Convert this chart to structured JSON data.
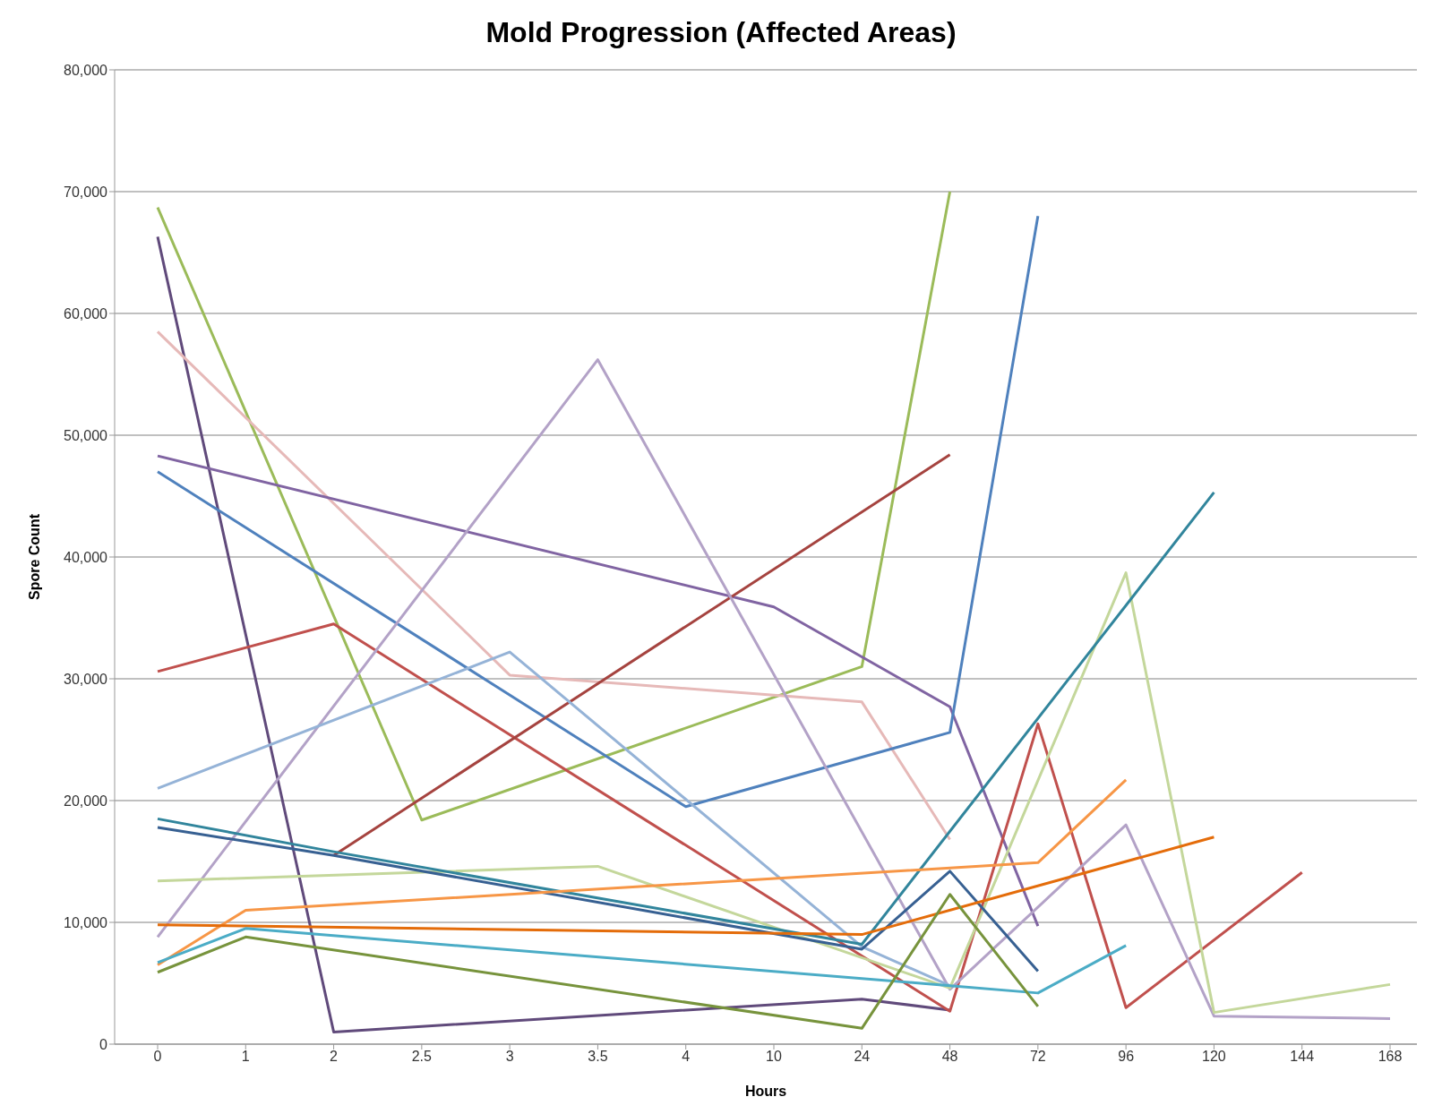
{
  "chart_data": {
    "type": "line",
    "title": "Mold Progression (Affected Areas)",
    "xlabel": "Hours",
    "ylabel": "Spore Count",
    "categories": [
      "0",
      "1",
      "2",
      "2.5",
      "3",
      "3.5",
      "4",
      "10",
      "24",
      "48",
      "72",
      "96",
      "120",
      "144",
      "168"
    ],
    "ylim": [
      0,
      80000
    ],
    "yticks": [
      0,
      {
        "value": 10000,
        "label": "10,000"
      },
      {
        "value": 20000,
        "label": "20,000"
      },
      {
        "value": 30000,
        "label": "30,000"
      },
      {
        "value": 40000,
        "label": "40,000"
      },
      {
        "value": 50000,
        "label": "50,000"
      },
      {
        "value": 60000,
        "label": "60,000"
      },
      {
        "value": 70000,
        "label": "70,000"
      },
      {
        "value": 80000,
        "label": "80,000"
      }
    ],
    "grid": "y",
    "marker": "none",
    "line_style": "solid",
    "series": [
      {
        "color": "#9bbb59",
        "values": [
          68700,
          null,
          null,
          18400,
          null,
          null,
          null,
          null,
          31000,
          70000,
          null,
          null,
          null,
          null,
          null
        ]
      },
      {
        "color": "#604a7b",
        "values": [
          66300,
          null,
          1000,
          null,
          null,
          null,
          null,
          null,
          3700,
          2800,
          null,
          null,
          null,
          null,
          null
        ]
      },
      {
        "color": "#e6b9b8",
        "values": [
          58500,
          null,
          null,
          null,
          30300,
          null,
          null,
          null,
          28100,
          16800,
          null,
          null,
          null,
          null,
          null
        ]
      },
      {
        "color": "#8064a2",
        "values": [
          48300,
          null,
          null,
          null,
          null,
          null,
          null,
          35900,
          null,
          27700,
          9700,
          null,
          null,
          null,
          null
        ]
      },
      {
        "color": "#4f81bd",
        "values": [
          47000,
          null,
          null,
          null,
          null,
          null,
          19500,
          null,
          null,
          25600,
          68000,
          null,
          null,
          null,
          null
        ]
      },
      {
        "color": "#c0504d",
        "values": [
          30600,
          null,
          34500,
          null,
          null,
          null,
          null,
          null,
          null,
          2700,
          26300,
          3000,
          null,
          14100,
          null
        ]
      },
      {
        "color": "#a5433f",
        "values": [
          null,
          null,
          15500,
          null,
          null,
          null,
          null,
          null,
          null,
          48400,
          null,
          null,
          null,
          null,
          null
        ]
      },
      {
        "color": "#b3a2c7",
        "values": [
          8800,
          null,
          null,
          null,
          null,
          56200,
          null,
          null,
          null,
          4500,
          null,
          18000,
          2300,
          null,
          2100
        ]
      },
      {
        "color": "#95b3d7",
        "values": [
          21000,
          null,
          null,
          null,
          32200,
          null,
          null,
          null,
          8000,
          4800,
          null,
          null,
          null,
          null,
          null
        ]
      },
      {
        "color": "#c4d79b",
        "values": [
          13400,
          null,
          null,
          null,
          null,
          14600,
          null,
          null,
          null,
          4600,
          null,
          38700,
          2600,
          null,
          4900
        ]
      },
      {
        "color": "#31859c",
        "values": [
          18500,
          null,
          15800,
          null,
          null,
          null,
          null,
          null,
          8200,
          null,
          null,
          null,
          45300,
          null,
          null
        ]
      },
      {
        "color": "#376092",
        "values": [
          17800,
          null,
          15500,
          null,
          null,
          null,
          null,
          null,
          7800,
          14200,
          6000,
          null,
          null,
          null,
          null
        ]
      },
      {
        "color": "#f79646",
        "values": [
          6500,
          11000,
          null,
          null,
          null,
          null,
          null,
          null,
          null,
          null,
          14900,
          21700,
          null,
          null,
          null
        ]
      },
      {
        "color": "#e46c0a",
        "values": [
          9800,
          null,
          null,
          null,
          null,
          null,
          null,
          null,
          9000,
          null,
          null,
          null,
          17000,
          null,
          null
        ]
      },
      {
        "color": "#4bacc6",
        "values": [
          6700,
          9500,
          null,
          null,
          null,
          null,
          null,
          null,
          null,
          4800,
          4200,
          8100,
          null,
          null,
          null
        ]
      },
      {
        "color": "#77933c",
        "values": [
          5900,
          8800,
          null,
          null,
          null,
          null,
          null,
          null,
          1300,
          12300,
          3100,
          null,
          null,
          null,
          null
        ]
      }
    ]
  }
}
